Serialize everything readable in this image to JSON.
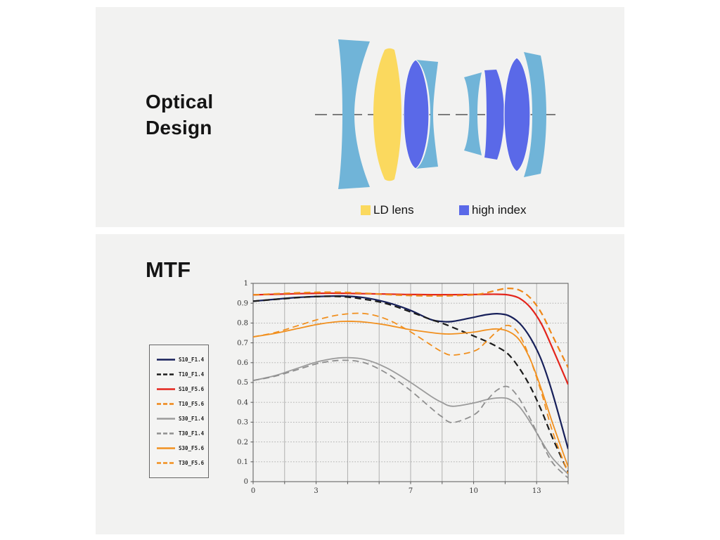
{
  "sections": {
    "optical": {
      "title_line1": "Optical",
      "title_line2": "Design",
      "legend": [
        {
          "label": "LD lens",
          "color": "#fbd95e"
        },
        {
          "label": "high index",
          "color": "#5a69e8"
        }
      ],
      "lens_elements": [
        {
          "id": 1,
          "material": "standard"
        },
        {
          "id": 2,
          "material": "LD"
        },
        {
          "id": 3,
          "material": "high index"
        },
        {
          "id": 4,
          "material": "standard"
        },
        {
          "id": 5,
          "material": "standard"
        },
        {
          "id": 6,
          "material": "high index"
        },
        {
          "id": 7,
          "material": "high index"
        },
        {
          "id": 8,
          "material": "standard"
        }
      ]
    },
    "mtf": {
      "title": "MTF"
    }
  },
  "colors": {
    "panel_bg": "#f2f2f1",
    "lens_standard": "#70b4d8",
    "lens_ld": "#fbd95e",
    "lens_high_index": "#5a69e8",
    "optical_axis": "#555555",
    "chart_border": "#666666",
    "grid": "#a8a8a8"
  },
  "chart_data": {
    "type": "line",
    "title": "MTF",
    "xlabel": "",
    "ylabel": "",
    "xlim": [
      0,
      14.2
    ],
    "ylim": [
      0,
      1
    ],
    "grid": true,
    "legend_position": "left",
    "x_ticks": [
      {
        "v": 0,
        "label": "0"
      },
      {
        "v": 2.84,
        "label": "3"
      },
      {
        "v": 7.1,
        "label": "7"
      },
      {
        "v": 9.94,
        "label": "10"
      },
      {
        "v": 12.78,
        "label": "13"
      }
    ],
    "y_ticks": [
      {
        "v": 1.0,
        "label": "1"
      },
      {
        "v": 0.9,
        "label": "0.9"
      },
      {
        "v": 0.8,
        "label": "0.8"
      },
      {
        "v": 0.7,
        "label": "0.7"
      },
      {
        "v": 0.6,
        "label": "0.6"
      },
      {
        "v": 0.5,
        "label": "0.5"
      },
      {
        "v": 0.4,
        "label": "0.4"
      },
      {
        "v": 0.3,
        "label": "0.3"
      },
      {
        "v": 0.2,
        "label": "0.2"
      },
      {
        "v": 0.1,
        "label": "0.1"
      },
      {
        "v": 0.0,
        "label": "0"
      }
    ],
    "x": [
      0,
      1,
      2,
      3,
      4,
      5,
      6,
      7,
      8,
      8.5,
      9,
      10,
      10.5,
      11,
      11.5,
      12,
      12.5,
      13,
      13.5,
      14.2
    ],
    "series": [
      {
        "name": "S10_F1.4",
        "color": "#17205a",
        "dash": false,
        "width": 2.2,
        "values": [
          0.91,
          0.92,
          0.929,
          0.934,
          0.936,
          0.928,
          0.905,
          0.868,
          0.818,
          0.808,
          0.808,
          0.83,
          0.842,
          0.847,
          0.838,
          0.8,
          0.725,
          0.612,
          0.445,
          0.165
        ]
      },
      {
        "name": "T10_F1.4",
        "color": "#1c1c1c",
        "dash": true,
        "width": 2.2,
        "values": [
          0.91,
          0.919,
          0.928,
          0.934,
          0.933,
          0.92,
          0.898,
          0.86,
          0.818,
          0.8,
          0.778,
          0.732,
          0.708,
          0.68,
          0.643,
          0.572,
          0.478,
          0.358,
          0.22,
          0.048
        ]
      },
      {
        "name": "S10_F5.6",
        "color": "#e3251c",
        "dash": false,
        "width": 2.2,
        "values": [
          0.942,
          0.945,
          0.948,
          0.95,
          0.95,
          0.948,
          0.946,
          0.944,
          0.943,
          0.943,
          0.943,
          0.944,
          0.945,
          0.945,
          0.942,
          0.925,
          0.878,
          0.795,
          0.672,
          0.49
        ]
      },
      {
        "name": "T10_F5.6",
        "color": "#ef8718",
        "dash": true,
        "width": 2.2,
        "values": [
          0.942,
          0.947,
          0.952,
          0.955,
          0.955,
          0.95,
          0.944,
          0.939,
          0.937,
          0.937,
          0.938,
          0.943,
          0.952,
          0.966,
          0.975,
          0.966,
          0.926,
          0.85,
          0.735,
          0.575
        ]
      },
      {
        "name": "S30_F1.4",
        "color": "#9b9b9b",
        "dash": false,
        "width": 1.8,
        "values": [
          0.51,
          0.535,
          0.572,
          0.607,
          0.625,
          0.617,
          0.575,
          0.508,
          0.432,
          0.4,
          0.38,
          0.398,
          0.413,
          0.422,
          0.418,
          0.378,
          0.298,
          0.205,
          0.118,
          0.038
        ]
      },
      {
        "name": "T30_F1.4",
        "color": "#8f8f8f",
        "dash": true,
        "width": 1.8,
        "values": [
          0.51,
          0.532,
          0.565,
          0.598,
          0.612,
          0.6,
          0.548,
          0.468,
          0.373,
          0.328,
          0.298,
          0.34,
          0.405,
          0.462,
          0.478,
          0.418,
          0.315,
          0.2,
          0.095,
          0.018
        ]
      },
      {
        "name": "S30_F5.6",
        "color": "#f1901f",
        "dash": false,
        "width": 1.8,
        "values": [
          0.73,
          0.748,
          0.772,
          0.795,
          0.808,
          0.805,
          0.79,
          0.768,
          0.752,
          0.746,
          0.745,
          0.755,
          0.765,
          0.77,
          0.758,
          0.715,
          0.615,
          0.465,
          0.295,
          0.075
        ]
      },
      {
        "name": "T30_F5.6",
        "color": "#f1901f",
        "dash": true,
        "width": 1.8,
        "values": [
          0.73,
          0.752,
          0.786,
          0.82,
          0.843,
          0.848,
          0.82,
          0.762,
          0.69,
          0.656,
          0.638,
          0.66,
          0.705,
          0.758,
          0.788,
          0.742,
          0.615,
          0.448,
          0.252,
          0.042
        ]
      }
    ]
  }
}
